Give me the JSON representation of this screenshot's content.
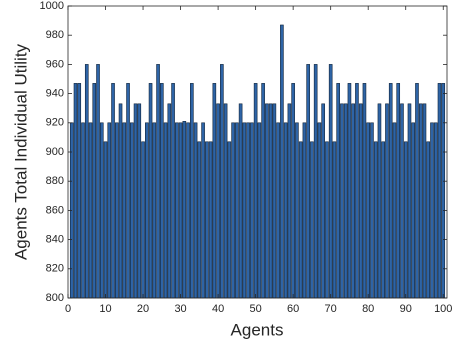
{
  "chart_data": {
    "type": "bar",
    "xlabel": "Agents",
    "ylabel": "Agents Total Individual Utility",
    "x": [
      1,
      2,
      3,
      4,
      5,
      6,
      7,
      8,
      9,
      10,
      11,
      12,
      13,
      14,
      15,
      16,
      17,
      18,
      19,
      20,
      21,
      22,
      23,
      24,
      25,
      26,
      27,
      28,
      29,
      30,
      31,
      32,
      33,
      34,
      35,
      36,
      37,
      38,
      39,
      40,
      41,
      42,
      43,
      44,
      45,
      46,
      47,
      48,
      49,
      50,
      51,
      52,
      53,
      54,
      55,
      56,
      57,
      58,
      59,
      60,
      61,
      62,
      63,
      64,
      65,
      66,
      67,
      68,
      69,
      70,
      71,
      72,
      73,
      74,
      75,
      76,
      77,
      78,
      79,
      80,
      81,
      82,
      83,
      84,
      85,
      86,
      87,
      88,
      89,
      90,
      91,
      92,
      93,
      94,
      95,
      96,
      97,
      98,
      99,
      100
    ],
    "values": [
      920,
      947,
      947,
      920,
      960,
      920,
      947,
      960,
      920,
      907,
      920,
      947,
      920,
      933,
      920,
      947,
      920,
      933,
      933,
      907,
      920,
      947,
      920,
      960,
      947,
      920,
      933,
      947,
      920,
      920,
      921,
      920,
      947,
      920,
      907,
      920,
      907,
      907,
      947,
      933,
      960,
      933,
      907,
      920,
      920,
      933,
      920,
      920,
      920,
      947,
      920,
      947,
      933,
      933,
      933,
      920,
      987,
      920,
      933,
      947,
      920,
      907,
      920,
      960,
      907,
      960,
      920,
      933,
      907,
      960,
      907,
      947,
      933,
      933,
      947,
      933,
      947,
      933,
      947,
      920,
      920,
      907,
      933,
      907,
      933,
      947,
      920,
      947,
      933,
      907,
      933,
      920,
      947,
      933,
      933,
      907,
      920,
      920,
      947,
      947
    ],
    "color": "#2e64a6",
    "xlim": [
      0,
      101
    ],
    "xticks": [
      0,
      10,
      20,
      30,
      40,
      50,
      60,
      70,
      80,
      90,
      100
    ],
    "ylim": [
      800,
      1000
    ],
    "yticks": [
      800,
      820,
      840,
      860,
      880,
      900,
      920,
      940,
      960,
      980,
      1000
    ]
  }
}
